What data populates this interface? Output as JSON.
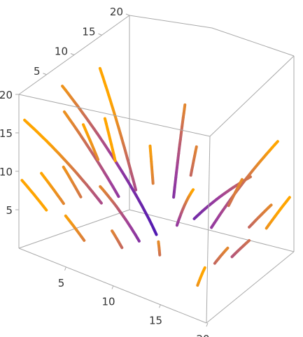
{
  "chart_data": {
    "type": "stream-3d",
    "title": "",
    "axes": {
      "x": {
        "label": "",
        "range": [
          0,
          20
        ],
        "ticks": [
          "5",
          "10",
          "15",
          "20"
        ]
      },
      "y": {
        "label": "",
        "range": [
          0,
          20
        ],
        "ticks": [
          "5",
          "10",
          "15",
          "20"
        ]
      },
      "z": {
        "label": "",
        "range": [
          0,
          20
        ],
        "ticks": [
          "5",
          "10",
          "15",
          "20"
        ]
      }
    },
    "grid": false,
    "legend": "none",
    "colors": {
      "low": "#3b0fb8",
      "mid": "#a0409a",
      "high": "#ffa500"
    },
    "sample_seeds": [
      [
        2,
        2,
        5
      ],
      [
        6,
        2,
        3
      ],
      [
        10,
        2,
        4
      ],
      [
        14,
        2,
        5
      ],
      [
        18,
        2,
        3
      ],
      [
        2,
        6,
        4
      ],
      [
        6,
        6,
        6
      ],
      [
        10,
        6,
        3
      ],
      [
        14,
        6,
        7
      ],
      [
        18,
        6,
        4
      ],
      [
        2,
        10,
        3
      ],
      [
        6,
        10,
        5
      ],
      [
        10,
        10,
        2
      ],
      [
        14,
        10,
        6
      ],
      [
        18,
        10,
        3
      ],
      [
        2,
        14,
        6
      ],
      [
        6,
        14,
        4
      ],
      [
        10,
        14,
        5
      ],
      [
        14,
        14,
        3
      ],
      [
        18,
        14,
        5
      ],
      [
        2,
        18,
        4
      ],
      [
        6,
        18,
        3
      ],
      [
        10,
        18,
        6
      ],
      [
        14,
        18,
        4
      ],
      [
        18,
        18,
        3
      ]
    ]
  }
}
